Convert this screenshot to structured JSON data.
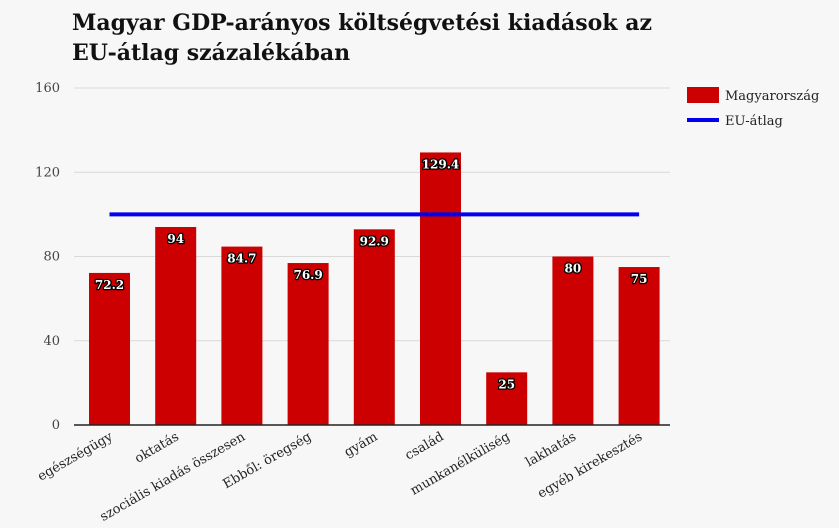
{
  "chart_data": {
    "type": "bar",
    "title": "Magyar GDP-arányos költségvetési kiadások az EU-átlag százalékában",
    "categories": [
      "egészségügy",
      "oktatás",
      "szociális kiadás összesen",
      "Ebből: öregség",
      "gyám",
      "család",
      "munkanélküliség",
      "lakhatás",
      "egyéb kirekesztés"
    ],
    "series": [
      {
        "name": "Magyarország",
        "type": "bar",
        "color": "#cc0000",
        "values": [
          72.2,
          94,
          84.7,
          76.9,
          92.9,
          129.4,
          25,
          80,
          75
        ]
      },
      {
        "name": "EU-átlag",
        "type": "line",
        "color": "#0000ee",
        "values": [
          100,
          100,
          100,
          100,
          100,
          100,
          100,
          100,
          100
        ]
      }
    ],
    "data_labels": [
      "72.2",
      "94",
      "84.7",
      "76.9",
      "92.9",
      "129.4",
      "25",
      "80",
      "75"
    ],
    "yticks": [
      "0",
      "40",
      "80",
      "120",
      "160"
    ],
    "ylim": [
      0,
      160
    ],
    "grid": true,
    "legend_position": "right"
  }
}
